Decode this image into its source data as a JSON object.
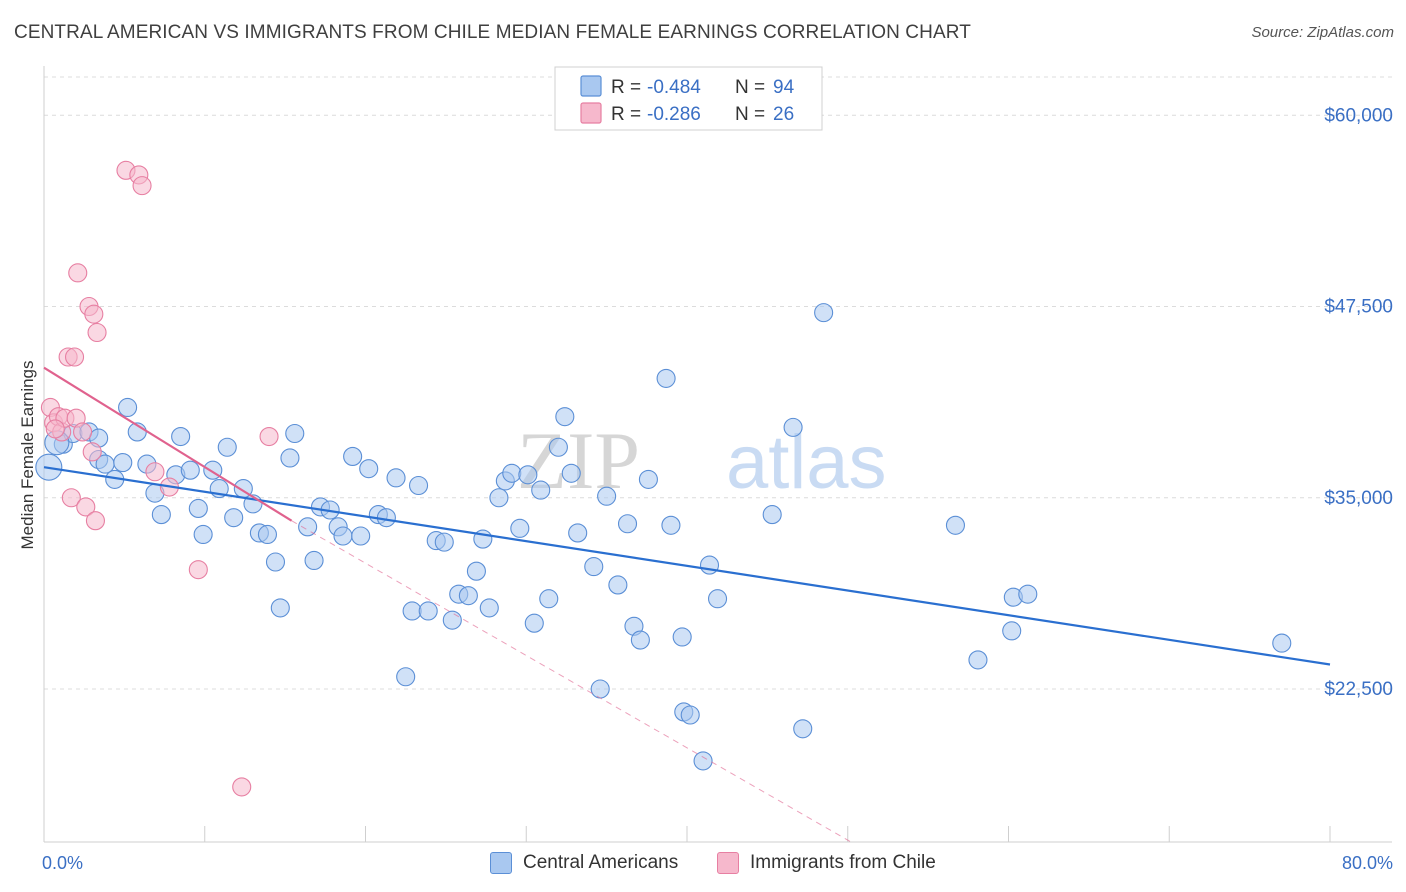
{
  "title": "CENTRAL AMERICAN VS IMMIGRANTS FROM CHILE MEDIAN FEMALE EARNINGS CORRELATION CHART",
  "source": "Source: ZipAtlas.com",
  "watermark": {
    "zip": "ZIP",
    "atlas": "atlas"
  },
  "legend_box": {
    "rows": [
      {
        "r_label": "R =",
        "r_value": "-0.484",
        "n_label": "N =",
        "n_value": "94"
      },
      {
        "r_label": "R =",
        "r_value": "-0.286",
        "n_label": "N =",
        "n_value": "26"
      }
    ]
  },
  "bottom_legend": [
    "Central Americans",
    "Immigrants from Chile"
  ],
  "chart_data": {
    "type": "scatter",
    "title": "CENTRAL AMERICAN VS IMMIGRANTS FROM CHILE MEDIAN FEMALE EARNINGS CORRELATION CHART",
    "xlabel": "",
    "ylabel": "Median Female Earnings",
    "xlim": [
      0,
      80
    ],
    "ylim": [
      12500,
      62500
    ],
    "x_tick_labels": [
      "0.0%",
      "80.0%"
    ],
    "y_ticks": [
      22500,
      35000,
      47500,
      60000
    ],
    "y_tick_labels": [
      "$22,500",
      "$35,000",
      "$47,500",
      "$60,000"
    ],
    "grid": true,
    "legend_position": "top-center",
    "colors": {
      "blue": "#5b8fd6",
      "blue_fill": "#a9c8f0",
      "pink": "#e77fa2",
      "pink_fill": "#f6b8cc",
      "blue_line": "#2a6fd0",
      "pink_line": "#e0628e"
    },
    "series": [
      {
        "name": "Central Americans",
        "r": -0.484,
        "n": 94,
        "trend": {
          "x": [
            0,
            80
          ],
          "y": [
            37000,
            24100
          ]
        },
        "points": [
          [
            0.3,
            37000
          ],
          [
            1.2,
            38500
          ],
          [
            1.8,
            39200
          ],
          [
            2.8,
            39300
          ],
          [
            3.4,
            38900
          ],
          [
            3.4,
            37500
          ],
          [
            3.8,
            37200
          ],
          [
            4.4,
            36200
          ],
          [
            4.9,
            37300
          ],
          [
            5.2,
            40900
          ],
          [
            5.8,
            39300
          ],
          [
            6.4,
            37200
          ],
          [
            6.9,
            35300
          ],
          [
            7.3,
            33900
          ],
          [
            8.2,
            36500
          ],
          [
            8.5,
            39000
          ],
          [
            9.1,
            36800
          ],
          [
            9.6,
            34300
          ],
          [
            9.9,
            32600
          ],
          [
            10.5,
            36800
          ],
          [
            10.9,
            35600
          ],
          [
            11.4,
            38300
          ],
          [
            11.8,
            33700
          ],
          [
            12.4,
            35600
          ],
          [
            13.0,
            34600
          ],
          [
            13.4,
            32700
          ],
          [
            13.9,
            32600
          ],
          [
            14.4,
            30800
          ],
          [
            14.7,
            27800
          ],
          [
            15.3,
            37600
          ],
          [
            15.6,
            39200
          ],
          [
            16.4,
            33100
          ],
          [
            16.8,
            30900
          ],
          [
            17.2,
            34400
          ],
          [
            17.8,
            34200
          ],
          [
            18.3,
            33100
          ],
          [
            18.6,
            32500
          ],
          [
            19.2,
            37700
          ],
          [
            19.7,
            32500
          ],
          [
            20.2,
            36900
          ],
          [
            20.8,
            33900
          ],
          [
            21.3,
            33700
          ],
          [
            21.9,
            36300
          ],
          [
            22.5,
            23300
          ],
          [
            22.9,
            27600
          ],
          [
            23.3,
            35800
          ],
          [
            23.9,
            27600
          ],
          [
            24.4,
            32200
          ],
          [
            24.9,
            32100
          ],
          [
            25.4,
            27000
          ],
          [
            25.8,
            28700
          ],
          [
            26.4,
            28600
          ],
          [
            26.9,
            30200
          ],
          [
            27.3,
            32300
          ],
          [
            27.7,
            27800
          ],
          [
            28.3,
            35000
          ],
          [
            28.7,
            36100
          ],
          [
            29.1,
            36600
          ],
          [
            29.6,
            33000
          ],
          [
            30.1,
            36500
          ],
          [
            30.5,
            26800
          ],
          [
            30.9,
            35500
          ],
          [
            31.4,
            28400
          ],
          [
            32.0,
            38300
          ],
          [
            32.4,
            40300
          ],
          [
            32.8,
            36600
          ],
          [
            33.2,
            32700
          ],
          [
            34.2,
            30500
          ],
          [
            34.6,
            22500
          ],
          [
            35.0,
            35100
          ],
          [
            35.7,
            29300
          ],
          [
            36.3,
            33300
          ],
          [
            36.7,
            26600
          ],
          [
            37.1,
            25700
          ],
          [
            37.6,
            36200
          ],
          [
            38.7,
            42800
          ],
          [
            39.0,
            33200
          ],
          [
            39.7,
            25900
          ],
          [
            39.8,
            21000
          ],
          [
            40.2,
            20800
          ],
          [
            41.0,
            17800
          ],
          [
            41.4,
            30600
          ],
          [
            41.9,
            28400
          ],
          [
            45.3,
            33900
          ],
          [
            46.6,
            39600
          ],
          [
            47.2,
            19900
          ],
          [
            48.5,
            47100
          ],
          [
            56.7,
            33200
          ],
          [
            58.1,
            24400
          ],
          [
            60.2,
            26300
          ],
          [
            60.3,
            28500
          ],
          [
            61.2,
            28700
          ],
          [
            77.0,
            25500
          ],
          [
            0.8,
            38600
          ]
        ]
      },
      {
        "name": "Immigrants from Chile",
        "r": -0.286,
        "n": 26,
        "trend": {
          "x": [
            0,
            15.4
          ],
          "y": [
            43500,
            33500
          ]
        },
        "trend_ext": {
          "x": [
            15.4,
            50.2
          ],
          "y": [
            33500,
            10900
          ]
        },
        "points": [
          [
            0.4,
            40900
          ],
          [
            0.6,
            39900
          ],
          [
            0.9,
            40300
          ],
          [
            1.1,
            39300
          ],
          [
            1.3,
            40200
          ],
          [
            1.5,
            44200
          ],
          [
            1.7,
            35000
          ],
          [
            1.9,
            44200
          ],
          [
            2.0,
            40200
          ],
          [
            2.1,
            49700
          ],
          [
            2.4,
            39300
          ],
          [
            2.6,
            34400
          ],
          [
            2.8,
            47500
          ],
          [
            3.0,
            38000
          ],
          [
            3.1,
            47000
          ],
          [
            3.2,
            33500
          ],
          [
            3.3,
            45800
          ],
          [
            5.1,
            56400
          ],
          [
            5.9,
            56100
          ],
          [
            6.1,
            55400
          ],
          [
            6.9,
            36700
          ],
          [
            7.8,
            35700
          ],
          [
            9.6,
            30300
          ],
          [
            12.3,
            16100
          ],
          [
            14.0,
            39000
          ],
          [
            0.7,
            39500
          ]
        ]
      }
    ]
  }
}
